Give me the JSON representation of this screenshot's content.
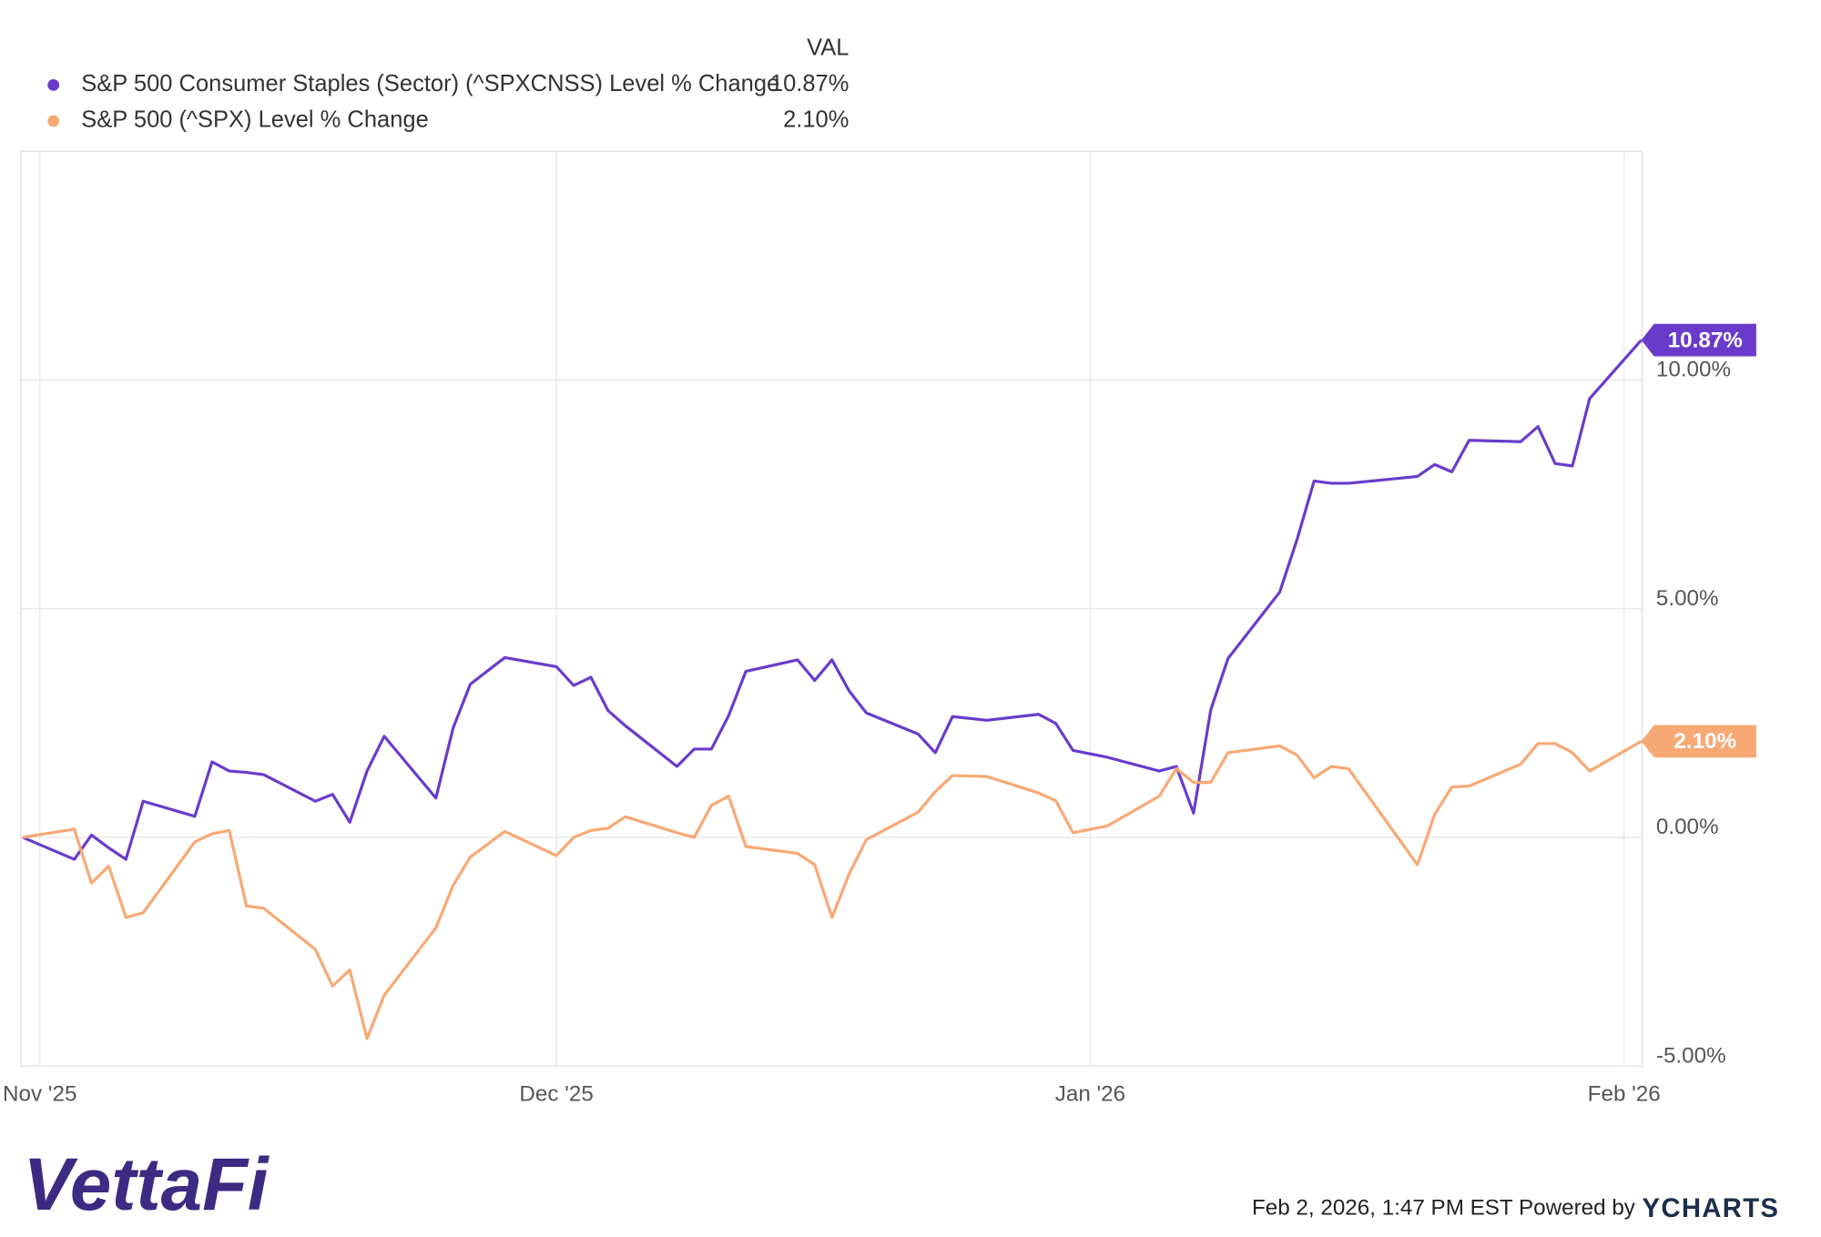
{
  "chart_data": {
    "type": "line",
    "legend_header": "VAL",
    "x": [
      -1,
      2,
      3,
      4,
      5,
      6,
      9,
      10,
      11,
      12,
      13,
      16,
      17,
      18,
      19,
      20,
      23,
      24,
      25,
      27,
      30,
      31,
      32,
      33,
      34,
      37,
      38,
      39,
      40,
      41,
      44,
      45,
      46,
      47,
      48,
      51,
      52,
      53,
      55,
      58,
      59,
      60,
      62,
      65,
      66,
      67,
      68,
      69,
      72,
      73,
      74,
      75,
      76,
      80,
      81,
      82,
      83,
      86,
      87,
      88,
      89,
      90,
      93
    ],
    "series": [
      {
        "name": "S&P 500 Consumer Staples (Sector) (^SPXCNSS) Level % Change",
        "color": "#6a3bcb",
        "values": [
          0,
          -0.48,
          0.05,
          -0.23,
          -0.48,
          0.79,
          0.46,
          1.65,
          1.45,
          1.42,
          1.37,
          0.79,
          0.94,
          0.33,
          1.45,
          2.21,
          0.86,
          2.39,
          3.35,
          3.93,
          3.73,
          3.32,
          3.5,
          2.77,
          2.44,
          1.55,
          1.93,
          1.93,
          2.66,
          3.63,
          3.88,
          3.43,
          3.88,
          3.2,
          2.72,
          2.26,
          1.85,
          2.64,
          2.56,
          2.69,
          2.49,
          1.9,
          1.75,
          1.45,
          1.55,
          0.53,
          2.79,
          3.91,
          5.36,
          6.5,
          7.79,
          7.74,
          7.74,
          7.89,
          8.15,
          7.99,
          8.68,
          8.65,
          8.98,
          8.17,
          8.12,
          9.59,
          10.87
        ],
        "value_labels": [
          null,
          null,
          null,
          null,
          null,
          null,
          null,
          null,
          null,
          null,
          null,
          null,
          null,
          null,
          null,
          null,
          null,
          null,
          null,
          null,
          null,
          null,
          null,
          null,
          null,
          null,
          null,
          null,
          null,
          null,
          null,
          null,
          null,
          null,
          null,
          null,
          null,
          null,
          null,
          null,
          null,
          null,
          null,
          null,
          null,
          null,
          null,
          null,
          null,
          null,
          null,
          null,
          null,
          null,
          null,
          null,
          null,
          null,
          null,
          null,
          null,
          null,
          "10.87%"
        ]
      },
      {
        "name": "S&P 500 (^SPX) Level % Change",
        "color": "#f8a874",
        "values": [
          0,
          0.18,
          -1.0,
          -0.63,
          -1.75,
          -1.65,
          -0.1,
          0.08,
          0.15,
          -1.5,
          -1.55,
          -2.45,
          -3.25,
          -2.9,
          -4.4,
          -3.45,
          -1.98,
          -1.05,
          -0.43,
          0.13,
          -0.4,
          0.0,
          0.15,
          0.2,
          0.45,
          0.1,
          0.0,
          0.7,
          0.9,
          -0.2,
          -0.35,
          -0.6,
          -1.75,
          -0.8,
          -0.05,
          0.55,
          1.0,
          1.35,
          1.33,
          0.97,
          0.8,
          0.1,
          0.25,
          0.9,
          1.5,
          1.2,
          1.2,
          1.85,
          2.0,
          1.8,
          1.3,
          1.55,
          1.5,
          -0.6,
          0.5,
          1.1,
          1.12,
          1.6,
          2.05,
          2.05,
          1.85,
          1.45,
          2.1
        ],
        "value_labels": [
          null,
          null,
          null,
          null,
          null,
          null,
          null,
          null,
          null,
          null,
          null,
          null,
          null,
          null,
          null,
          null,
          null,
          null,
          null,
          null,
          null,
          null,
          null,
          null,
          null,
          null,
          null,
          null,
          null,
          null,
          null,
          null,
          null,
          null,
          null,
          null,
          null,
          null,
          null,
          null,
          null,
          null,
          null,
          null,
          null,
          null,
          null,
          null,
          null,
          null,
          null,
          null,
          null,
          null,
          null,
          null,
          null,
          null,
          null,
          null,
          null,
          null,
          "2.10%"
        ]
      }
    ],
    "xlim": [
      -1.1,
      93.05
    ],
    "xticks": [
      {
        "value": 0,
        "label": "Nov '25"
      },
      {
        "value": 30,
        "label": "Dec '25"
      },
      {
        "value": 61,
        "label": "Jan '26"
      },
      {
        "value": 92,
        "label": "Feb '26"
      }
    ],
    "ylim": [
      -5,
      15
    ],
    "yticks": [
      {
        "value": -5,
        "label": "-5.00%"
      },
      {
        "value": 0,
        "label": "0.00%"
      },
      {
        "value": 5,
        "label": "5.00%"
      },
      {
        "value": 10,
        "label": "10.00%"
      }
    ],
    "grid": true
  },
  "logo": "VettaFi",
  "footer_text": "Feb 2, 2026, 1:47 PM EST Powered by",
  "footer_brand": "YCHARTS"
}
